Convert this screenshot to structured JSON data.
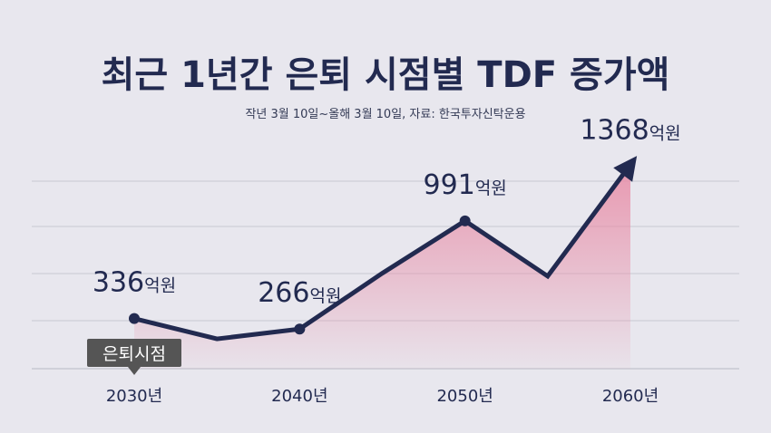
{
  "title": "최근 1년간 은퇴 시점별 TDF 증가액",
  "subtitle": "작년 3월 10일~올해 3월 10일, 자료: 한국투자신탁운용",
  "chart_data": {
    "type": "line",
    "x": [
      2030,
      2035,
      2040,
      2045,
      2050,
      2055,
      2060
    ],
    "values": [
      336,
      200,
      266,
      640,
      991,
      620,
      1368
    ],
    "xlim": [
      2030,
      2060
    ],
    "ylim": [
      0,
      1500
    ],
    "categories": [
      "2030년",
      "2040년",
      "2050년",
      "2060년"
    ],
    "labels": [
      {
        "x": 2030,
        "num": "336",
        "unit": "억원"
      },
      {
        "x": 2040,
        "num": "266",
        "unit": "억원"
      },
      {
        "x": 2050,
        "num": "991",
        "unit": "억원"
      },
      {
        "x": 2060,
        "num": "1368",
        "unit": "억원"
      }
    ],
    "annotation": "은퇴시점",
    "grid": true,
    "colors": {
      "line": "#222a50",
      "fill": "#e88aa5",
      "grid": "#c9c8d2",
      "badge": "#555555"
    }
  }
}
